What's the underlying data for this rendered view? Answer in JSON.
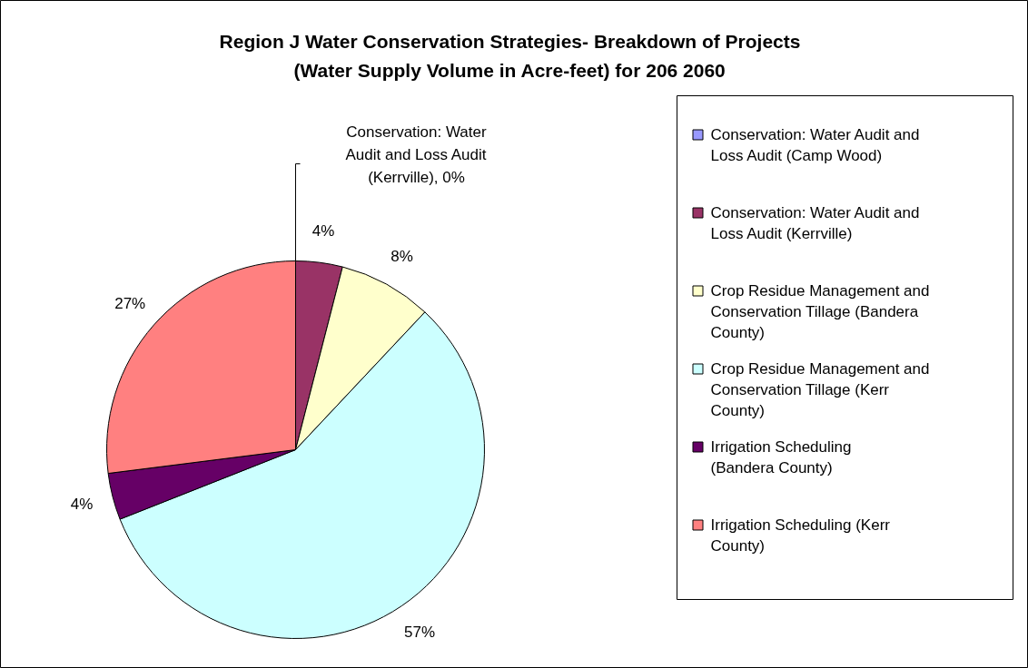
{
  "chart_data": {
    "type": "pie",
    "title": "Region J Water Conservation Strategies- Breakdown of Projects (Water Supply Volume in Acre-feet) for 206 2060",
    "categories": [
      "Conservation: Water Audit and Loss Audit (Camp Wood)",
      "Conservation: Water Audit and Loss Audit (Kerrville)",
      "Crop Residue Management and Conservation Tillage (Bandera County)",
      "Crop Residue Management and Conservation Tillage (Kerr County)",
      "Irrigation Scheduling (Bandera County)",
      "Irrigation Scheduling (Kerr County)"
    ],
    "values": [
      0,
      4,
      8,
      57,
      4,
      27
    ],
    "colors": [
      "#9999ff",
      "#993366",
      "#ffffcc",
      "#ccffff",
      "#660066",
      "#ff8080"
    ],
    "value_labels": [
      "Conservation: Water Audit and Loss Audit (Kerrville), 0%",
      "4%",
      "8%",
      "57%",
      "4%",
      "27%"
    ],
    "legend": "right"
  }
}
